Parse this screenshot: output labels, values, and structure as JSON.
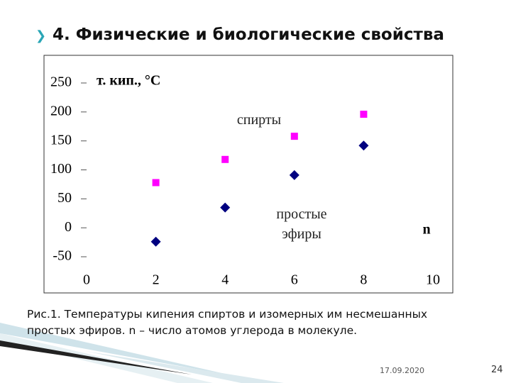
{
  "slide_title": "4. Физические и биологические свойства",
  "caption": "Рис.1. Температуры кипения спиртов и изомерных им несмешанных простых эфиров. n – число атомов углерода в молекуле.",
  "date": "17.09.2020",
  "page_number": "24",
  "chart_data": {
    "type": "scatter",
    "y_label": "т. кип., °C",
    "x_label": "n",
    "x": [
      2,
      4,
      6,
      8
    ],
    "series": [
      {
        "name": "спирты",
        "color": "#ff00ff",
        "marker": "square",
        "values": [
          78,
          118,
          158,
          196
        ]
      },
      {
        "name": "простые эфиры",
        "color": "#000080",
        "marker": "diamond",
        "values": [
          -24,
          35,
          91,
          142
        ]
      }
    ],
    "xlim": [
      0,
      10
    ],
    "xticks": [
      0,
      2,
      4,
      6,
      8,
      10
    ],
    "ylim": [
      -50,
      250
    ],
    "yticks": [
      -50,
      0,
      50,
      100,
      150,
      200,
      250
    ],
    "grid": false
  }
}
